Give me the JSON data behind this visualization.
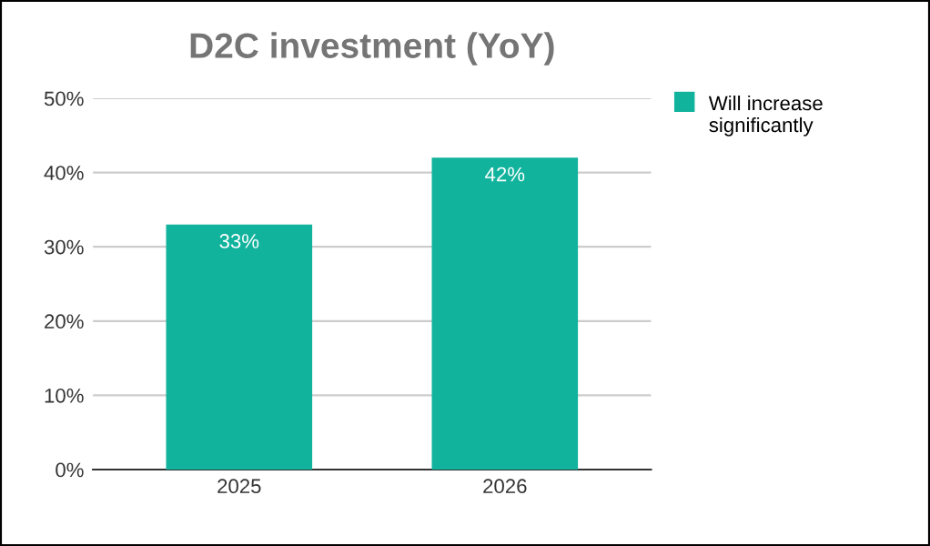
{
  "chart_data": {
    "type": "bar",
    "title": "D2C investment (YoY)",
    "categories": [
      "2025",
      "2026"
    ],
    "series": [
      {
        "name": "Will increase significantly",
        "color": "#12b39d",
        "values": [
          33,
          42
        ]
      }
    ],
    "ylim": [
      0,
      50
    ],
    "yticks": [
      {
        "value": 0,
        "label": "0%"
      },
      {
        "value": 10,
        "label": "10%"
      },
      {
        "value": 20,
        "label": "20%"
      },
      {
        "value": 30,
        "label": "30%"
      },
      {
        "value": 40,
        "label": "40%"
      },
      {
        "value": 50,
        "label": "50%"
      }
    ],
    "value_labels": [
      "33%",
      "42%"
    ],
    "grid": "y",
    "legend": "top right"
  }
}
